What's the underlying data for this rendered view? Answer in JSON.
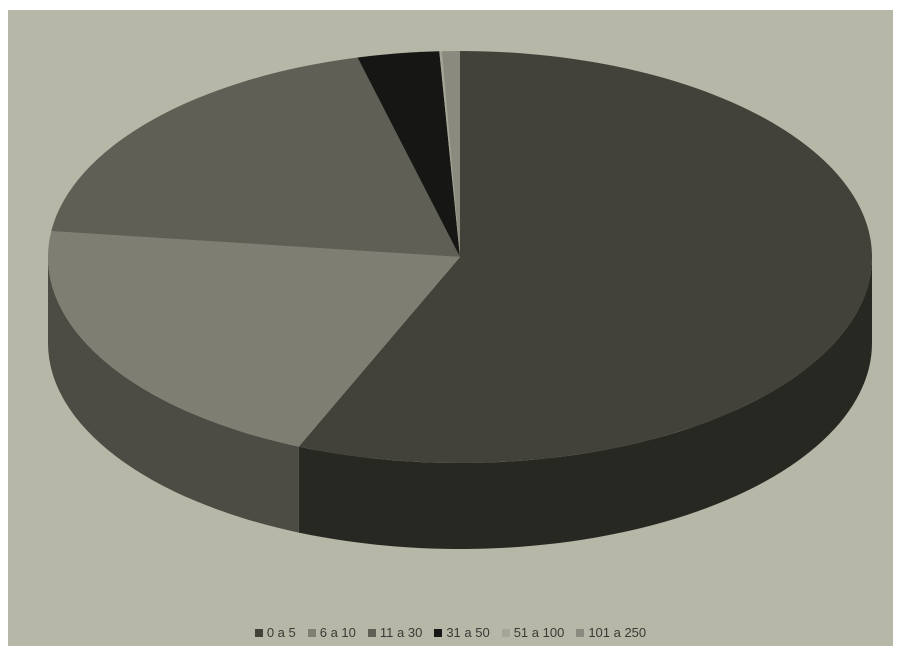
{
  "chart_data": {
    "type": "pie",
    "style": "3d",
    "title": "",
    "legend_position": "bottom",
    "slices": [
      {
        "label": "0 a 5",
        "value": 56.4,
        "color": "#42423b"
      },
      {
        "label": "6 a 10",
        "value": 20.6,
        "color": "#7e7e72"
      },
      {
        "label": "11 a 30",
        "value": 19.0,
        "color": "#5f5f56"
      },
      {
        "label": "31 a 50",
        "value": 3.2,
        "color": "#161614"
      },
      {
        "label": "51 a 100",
        "value": 0.1,
        "color": "#a4a596"
      },
      {
        "label": "101 a 250",
        "value": 0.7,
        "color": "#8a8a7e"
      }
    ]
  }
}
